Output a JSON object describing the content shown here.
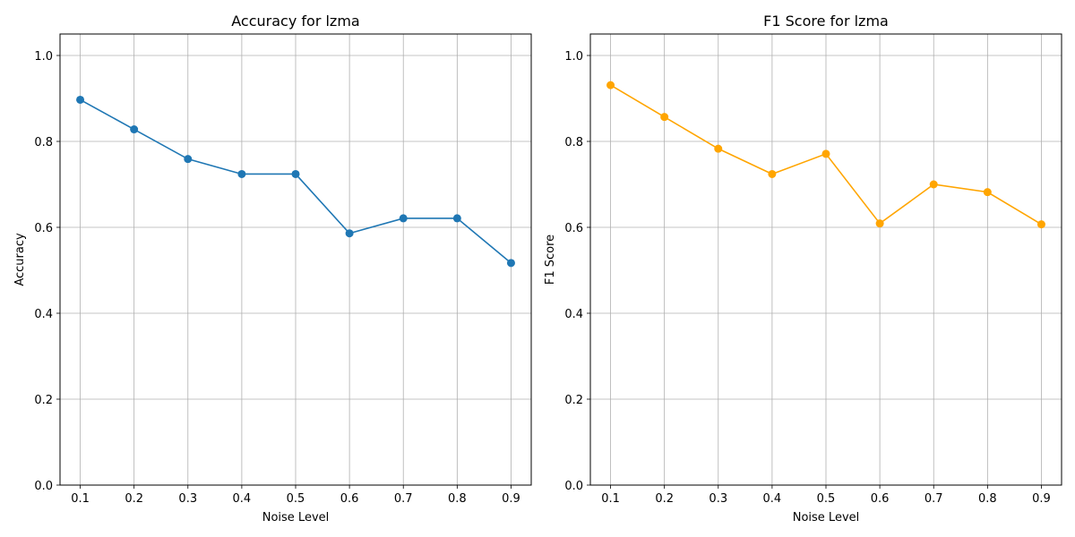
{
  "chart_data": [
    {
      "type": "line",
      "title": "Accuracy for lzma",
      "xlabel": "Noise Level",
      "ylabel": "Accuracy",
      "x": [
        0.1,
        0.2,
        0.3,
        0.4,
        0.5,
        0.6,
        0.7,
        0.8,
        0.9
      ],
      "x_tick_labels": [
        "0.1",
        "0.2",
        "0.3",
        "0.4",
        "0.5",
        "0.6",
        "0.7",
        "0.8",
        "0.9"
      ],
      "y_tick_labels": [
        "0.0",
        "0.2",
        "0.4",
        "0.6",
        "0.8",
        "1.0"
      ],
      "y_ticks": [
        0.0,
        0.2,
        0.4,
        0.6,
        0.8,
        1.0
      ],
      "ylim": [
        0.0,
        1.05
      ],
      "xlim": [
        0.0625,
        0.9375
      ],
      "grid": true,
      "series": [
        {
          "values": [
            0.897,
            0.828,
            0.759,
            0.724,
            0.724,
            0.586,
            0.621,
            0.621,
            0.517
          ],
          "color": "#1f77b4",
          "marker": "circle"
        }
      ]
    },
    {
      "type": "line",
      "title": "F1 Score for lzma",
      "xlabel": "Noise Level",
      "ylabel": "F1 Score",
      "x": [
        0.1,
        0.2,
        0.3,
        0.4,
        0.5,
        0.6,
        0.7,
        0.8,
        0.9
      ],
      "x_tick_labels": [
        "0.1",
        "0.2",
        "0.3",
        "0.4",
        "0.5",
        "0.6",
        "0.7",
        "0.8",
        "0.9"
      ],
      "y_tick_labels": [
        "0.0",
        "0.2",
        "0.4",
        "0.6",
        "0.8",
        "1.0"
      ],
      "y_ticks": [
        0.0,
        0.2,
        0.4,
        0.6,
        0.8,
        1.0
      ],
      "ylim": [
        0.0,
        1.05
      ],
      "xlim": [
        0.0625,
        0.9375
      ],
      "grid": true,
      "series": [
        {
          "values": [
            0.931,
            0.857,
            0.783,
            0.724,
            0.771,
            0.609,
            0.7,
            0.682,
            0.607
          ],
          "color": "#ffa500",
          "marker": "circle"
        }
      ]
    }
  ]
}
